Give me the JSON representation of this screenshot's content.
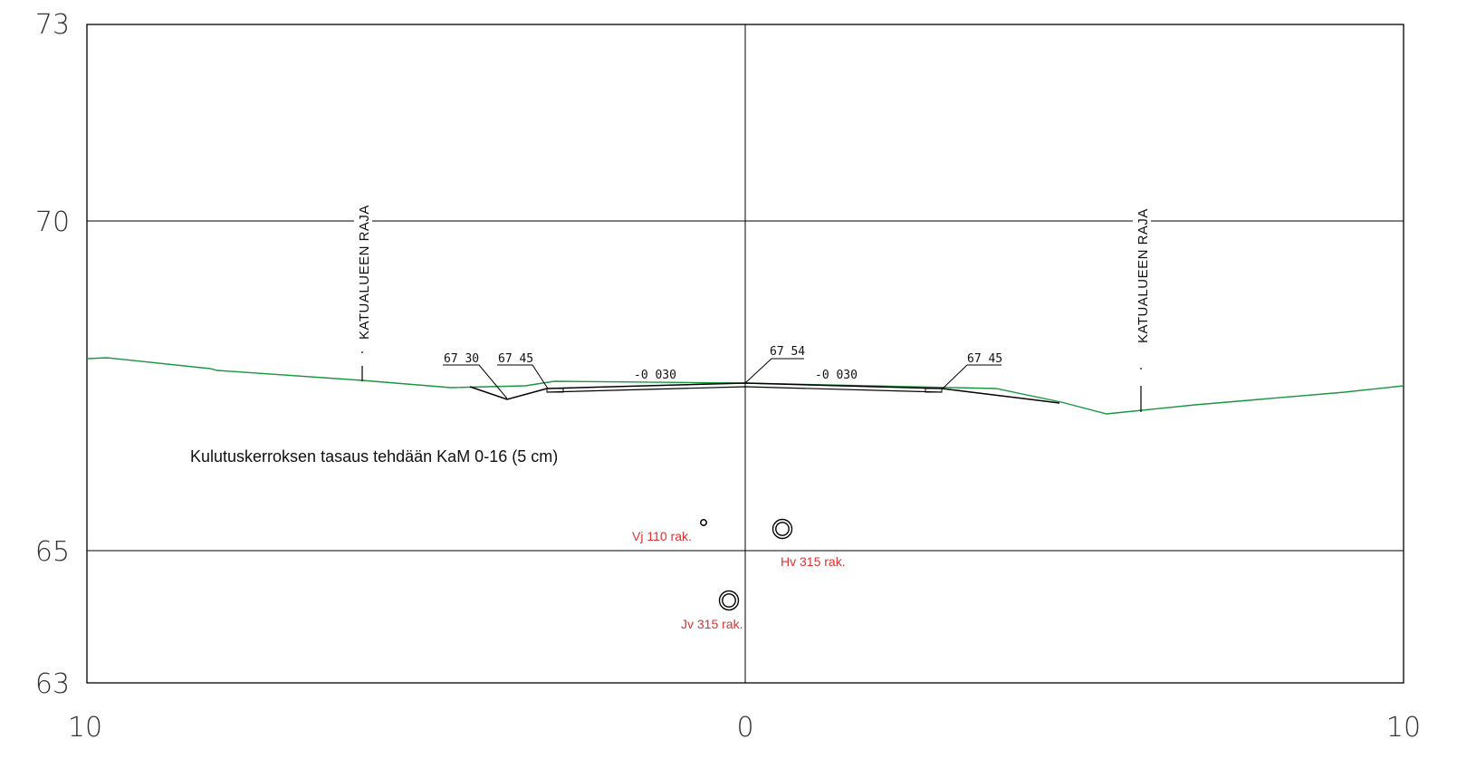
{
  "axes": {
    "y_ticks": [
      "73",
      "70",
      "65",
      "63"
    ],
    "x_ticks": [
      "10",
      "0",
      "10"
    ]
  },
  "boundary_labels": {
    "left": "KATUALUEEN RAJA",
    "right": "KATUALUEEN RAJA"
  },
  "elevations": {
    "e1": "67 30",
    "e2": "67 45",
    "e3": "67 54",
    "e4": "67 45"
  },
  "slopes": {
    "left": "-0 030",
    "right": "-0 030"
  },
  "note": "Kulutuskerroksen tasaus tehdään KaM 0-16 (5 cm)",
  "pipes": {
    "vj": "Vj 110 rak.",
    "hv": "Hv 315 rak.",
    "jv": "Jv 315 rak."
  },
  "colors": {
    "existing_ground": "#1a9641",
    "design": "#000000",
    "pipe_label": "#e03131"
  }
}
